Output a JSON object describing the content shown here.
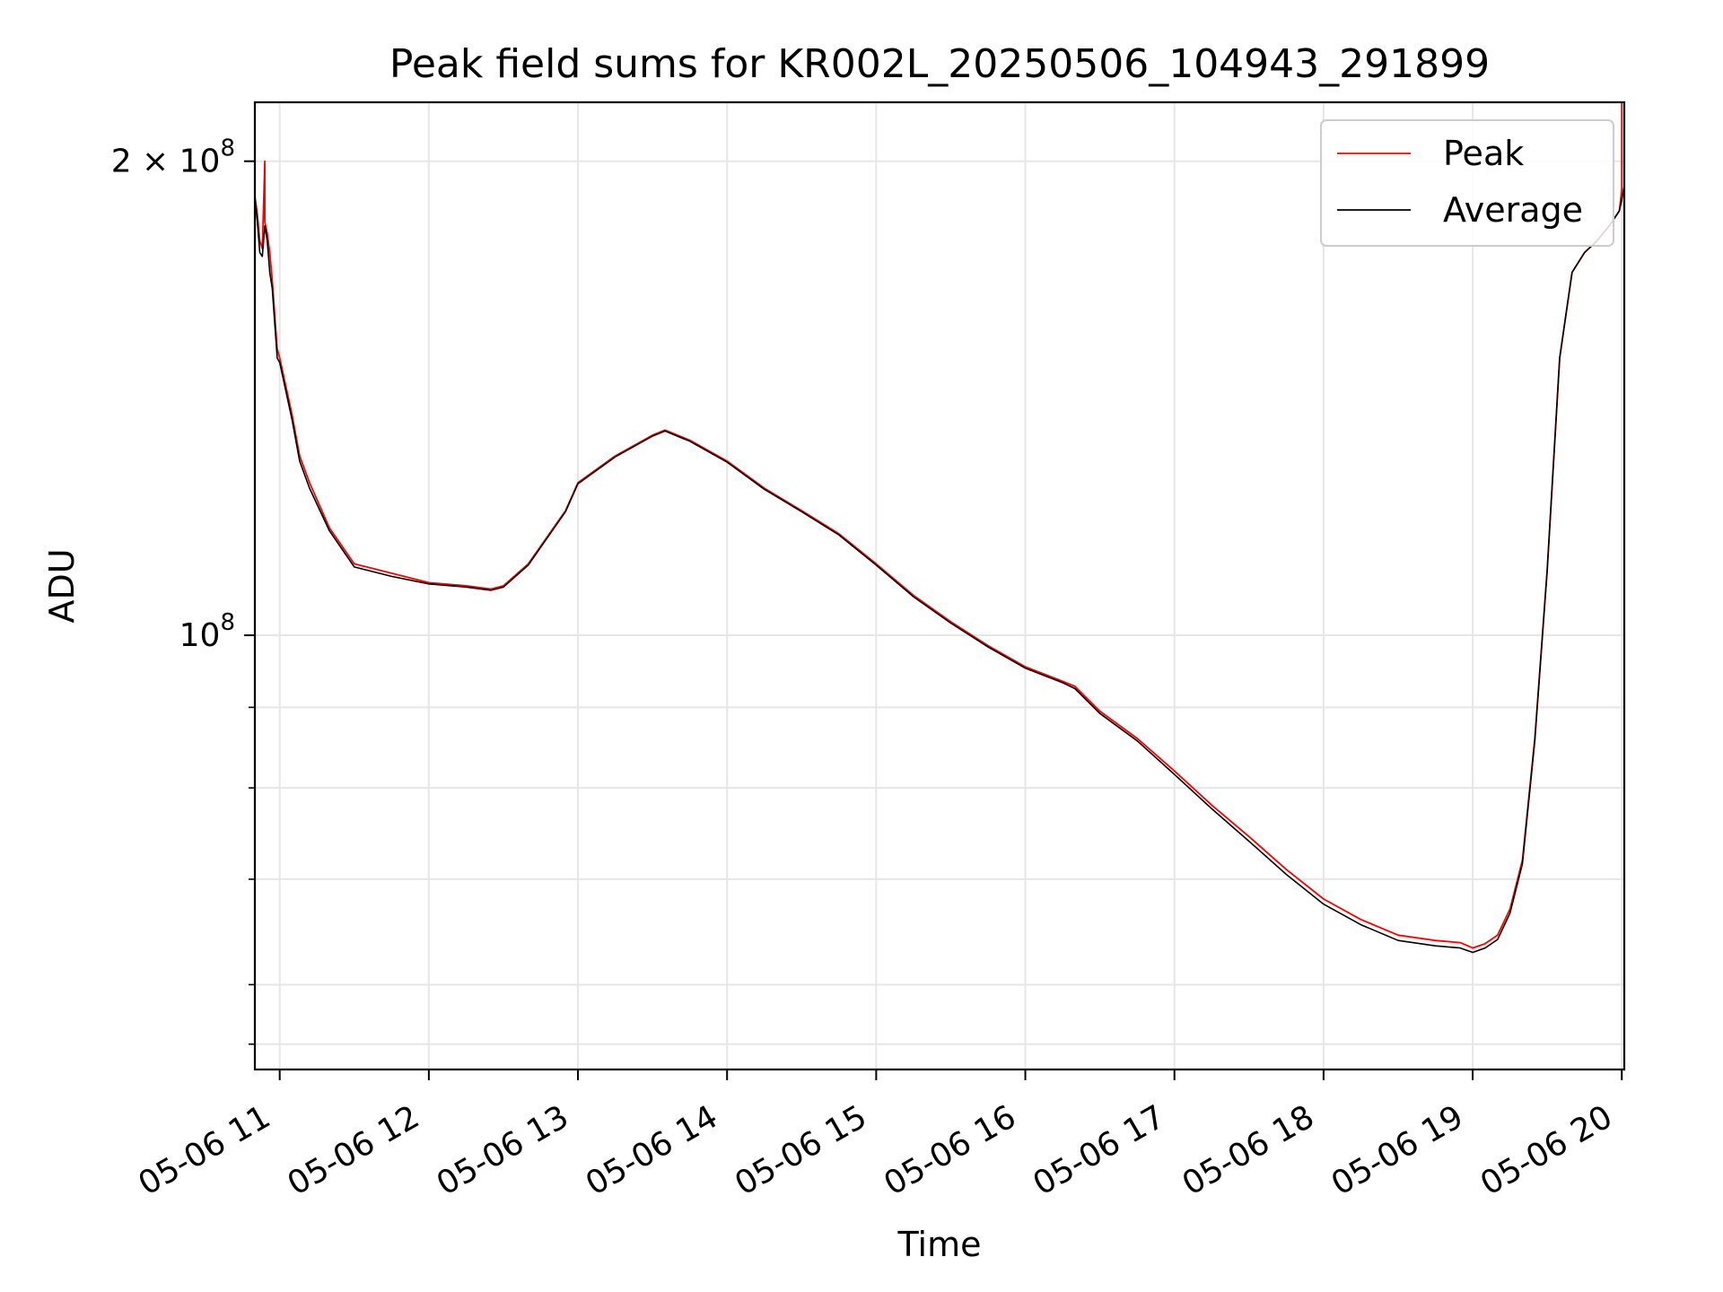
{
  "chart_data": {
    "type": "line",
    "title": "Peak field sums for KR002L_20250506_104943_291899",
    "xlabel": "Time",
    "ylabel": "ADU",
    "x_scale": "time",
    "y_scale": "log",
    "xlim": [
      "2025-05-06 10:50",
      "2025-05-06 20:01"
    ],
    "ylim": [
      53000000,
      218000000
    ],
    "x_ticks": [
      {
        "value": "2025-05-06 11:00",
        "label": "05-06 11"
      },
      {
        "value": "2025-05-06 12:00",
        "label": "05-06 12"
      },
      {
        "value": "2025-05-06 13:00",
        "label": "05-06 13"
      },
      {
        "value": "2025-05-06 14:00",
        "label": "05-06 14"
      },
      {
        "value": "2025-05-06 15:00",
        "label": "05-06 15"
      },
      {
        "value": "2025-05-06 16:00",
        "label": "05-06 16"
      },
      {
        "value": "2025-05-06 17:00",
        "label": "05-06 17"
      },
      {
        "value": "2025-05-06 18:00",
        "label": "05-06 18"
      },
      {
        "value": "2025-05-06 19:00",
        "label": "05-06 19"
      },
      {
        "value": "2025-05-06 20:00",
        "label": "05-06 20"
      }
    ],
    "y_major_ticks": [
      {
        "value": 100000000,
        "base": "10",
        "exp": "8"
      },
      {
        "value": 200000000,
        "mant": "2 × 10",
        "exp": "8"
      }
    ],
    "y_minor_ticks": [
      55000000,
      60000000,
      70000000,
      80000000,
      90000000
    ],
    "grid": true,
    "legend": "top-right",
    "series": [
      {
        "name": "Peak",
        "color": "#ff0000",
        "x": [
          "2025-05-06 10:50",
          "2025-05-06 10:51",
          "2025-05-06 10:52",
          "2025-05-06 10:53",
          "2025-05-06 10:54",
          "2025-05-06 10:54",
          "2025-05-06 10:55",
          "2025-05-06 10:56",
          "2025-05-06 10:57",
          "2025-05-06 10:59",
          "2025-05-06 11:00",
          "2025-05-06 11:05",
          "2025-05-06 11:08",
          "2025-05-06 11:12",
          "2025-05-06 11:20",
          "2025-05-06 11:30",
          "2025-05-06 11:35",
          "2025-05-06 11:45",
          "2025-05-06 12:00",
          "2025-05-06 12:15",
          "2025-05-06 12:25",
          "2025-05-06 12:30",
          "2025-05-06 12:40",
          "2025-05-06 12:55",
          "2025-05-06 13:00",
          "2025-05-06 13:15",
          "2025-05-06 13:30",
          "2025-05-06 13:35",
          "2025-05-06 13:45",
          "2025-05-06 14:00",
          "2025-05-06 14:15",
          "2025-05-06 14:30",
          "2025-05-06 14:45",
          "2025-05-06 15:00",
          "2025-05-06 15:15",
          "2025-05-06 15:30",
          "2025-05-06 15:45",
          "2025-05-06 16:00",
          "2025-05-06 16:15",
          "2025-05-06 16:20",
          "2025-05-06 16:30",
          "2025-05-06 16:45",
          "2025-05-06 17:00",
          "2025-05-06 17:15",
          "2025-05-06 17:30",
          "2025-05-06 17:45",
          "2025-05-06 18:00",
          "2025-05-06 18:15",
          "2025-05-06 18:30",
          "2025-05-06 18:45",
          "2025-05-06 18:55",
          "2025-05-06 19:00",
          "2025-05-06 19:05",
          "2025-05-06 19:10",
          "2025-05-06 19:15",
          "2025-05-06 19:20",
          "2025-05-06 19:25",
          "2025-05-06 19:30",
          "2025-05-06 19:35",
          "2025-05-06 19:40",
          "2025-05-06 19:45",
          "2025-05-06 19:50",
          "2025-05-06 19:55",
          "2025-05-06 19:59",
          "2025-05-06 20:00",
          "2025-05-06 20:00",
          "2025-05-06 20:01"
        ],
        "y": [
          190000000,
          185000000,
          178000000,
          176000000,
          200000000,
          183000000,
          180000000,
          175000000,
          168000000,
          152000000,
          150000000,
          138000000,
          130000000,
          125000000,
          117000000,
          111000000,
          110500000,
          109500000,
          108000000,
          107500000,
          107000000,
          107500000,
          111000000,
          120000000,
          125000000,
          130000000,
          134000000,
          135000000,
          133000000,
          129000000,
          124000000,
          120000000,
          116000000,
          111000000,
          106000000,
          102000000,
          98500000,
          95500000,
          93500000,
          92800000,
          89500000,
          86000000,
          82000000,
          78000000,
          74500000,
          71000000,
          68000000,
          66000000,
          64500000,
          64000000,
          63800000,
          63300000,
          63700000,
          64500000,
          67000000,
          72000000,
          86000000,
          110000000,
          150000000,
          170000000,
          175000000,
          178000000,
          182000000,
          186000000,
          192000000,
          218000000,
          218000000
        ]
      },
      {
        "name": "Average",
        "color": "#000000",
        "x": [
          "2025-05-06 10:50",
          "2025-05-06 10:51",
          "2025-05-06 10:52",
          "2025-05-06 10:53",
          "2025-05-06 10:54",
          "2025-05-06 10:55",
          "2025-05-06 10:56",
          "2025-05-06 10:57",
          "2025-05-06 10:59",
          "2025-05-06 11:00",
          "2025-05-06 11:05",
          "2025-05-06 11:08",
          "2025-05-06 11:12",
          "2025-05-06 11:20",
          "2025-05-06 11:30",
          "2025-05-06 11:35",
          "2025-05-06 11:45",
          "2025-05-06 12:00",
          "2025-05-06 12:15",
          "2025-05-06 12:25",
          "2025-05-06 12:30",
          "2025-05-06 12:40",
          "2025-05-06 12:55",
          "2025-05-06 13:00",
          "2025-05-06 13:15",
          "2025-05-06 13:30",
          "2025-05-06 13:35",
          "2025-05-06 13:45",
          "2025-05-06 14:00",
          "2025-05-06 14:15",
          "2025-05-06 14:30",
          "2025-05-06 14:45",
          "2025-05-06 15:00",
          "2025-05-06 15:15",
          "2025-05-06 15:30",
          "2025-05-06 15:45",
          "2025-05-06 16:00",
          "2025-05-06 16:15",
          "2025-05-06 16:20",
          "2025-05-06 16:30",
          "2025-05-06 16:45",
          "2025-05-06 17:00",
          "2025-05-06 17:15",
          "2025-05-06 17:30",
          "2025-05-06 17:45",
          "2025-05-06 18:00",
          "2025-05-06 18:15",
          "2025-05-06 18:30",
          "2025-05-06 18:45",
          "2025-05-06 18:55",
          "2025-05-06 19:00",
          "2025-05-06 19:05",
          "2025-05-06 19:10",
          "2025-05-06 19:15",
          "2025-05-06 19:20",
          "2025-05-06 19:25",
          "2025-05-06 19:30",
          "2025-05-06 19:35",
          "2025-05-06 19:40",
          "2025-05-06 19:45",
          "2025-05-06 19:50",
          "2025-05-06 19:55",
          "2025-05-06 19:59",
          "2025-05-06 20:00",
          "2025-05-06 20:01"
        ],
        "y": [
          190000000,
          183000000,
          175000000,
          174000000,
          182000000,
          178000000,
          170000000,
          166000000,
          150000000,
          149000000,
          137000000,
          129000000,
          124000000,
          116500000,
          110500000,
          110000000,
          109000000,
          107800000,
          107300000,
          106800000,
          107300000,
          110800000,
          119800000,
          124800000,
          129800000,
          133800000,
          134800000,
          132800000,
          128800000,
          123800000,
          119800000,
          115800000,
          110800000,
          105800000,
          101800000,
          98300000,
          95300000,
          93300000,
          92500000,
          89200000,
          85700000,
          81600000,
          77600000,
          74000000,
          70500000,
          67500000,
          65500000,
          64000000,
          63500000,
          63300000,
          62900000,
          63300000,
          64100000,
          66600000,
          71600000,
          85700000,
          110000000,
          150000000,
          170000000,
          175000000,
          178000000,
          182000000,
          186000000,
          189000000,
          193000000
        ]
      }
    ]
  }
}
